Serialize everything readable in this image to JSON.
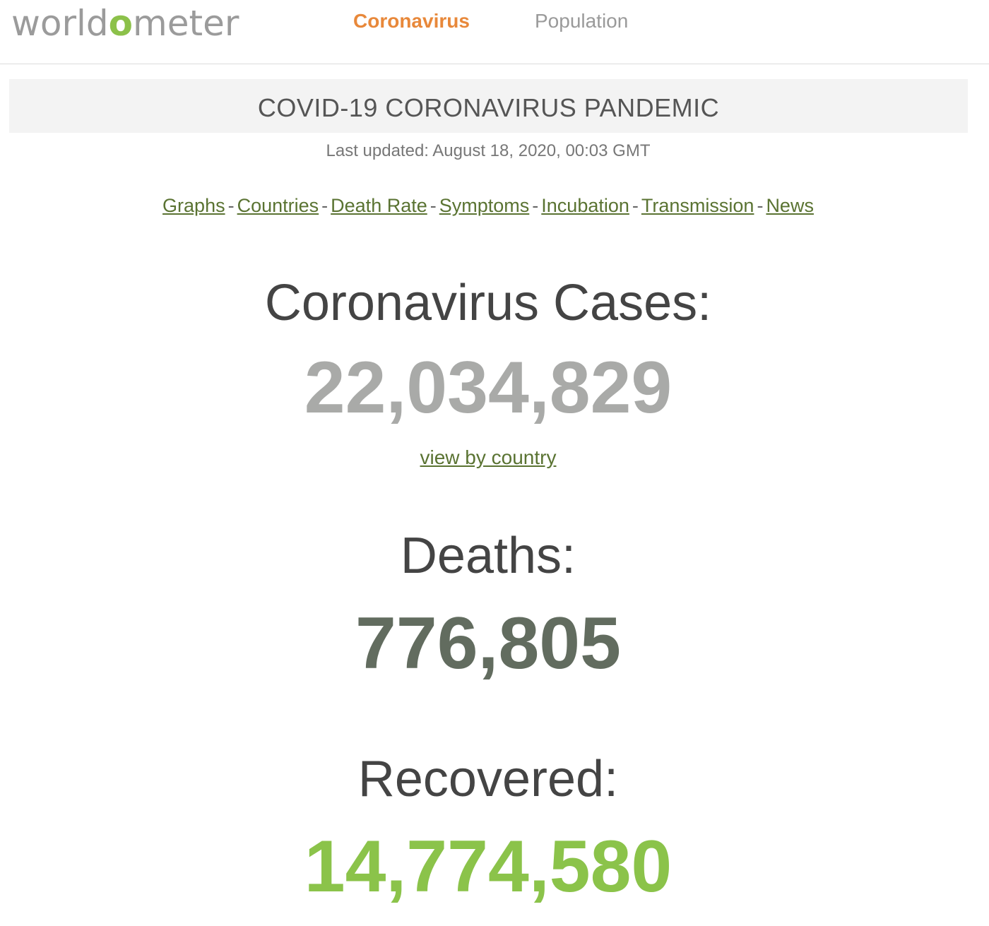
{
  "header": {
    "logo": {
      "prefix": "world",
      "mark": "o",
      "suffix": "meter"
    },
    "nav": [
      {
        "label": "Coronavirus",
        "active": true
      },
      {
        "label": "Population",
        "active": false
      }
    ]
  },
  "banner": {
    "title": "COVID-19 CORONAVIRUS PANDEMIC",
    "last_updated": "Last updated: August 18, 2020, 00:03 GMT"
  },
  "quick_links": [
    "Graphs",
    "Countries",
    "Death Rate",
    "Symptoms",
    "Incubation",
    "Transmission",
    "News"
  ],
  "stats": {
    "cases": {
      "label": "Coronavirus Cases:",
      "value": "22,034,829",
      "link": "view by country"
    },
    "deaths": {
      "label": "Deaths:",
      "value": "776,805"
    },
    "recovered": {
      "label": "Recovered:",
      "value": "14,774,580"
    }
  },
  "colors": {
    "brand_green": "#8cc14a",
    "active_nav_orange": "#e8883a",
    "link_green": "#5a7332",
    "cases_gray": "#a9aaa8",
    "deaths_gray": "#626c5f",
    "recovered_green": "#8bc34a"
  }
}
